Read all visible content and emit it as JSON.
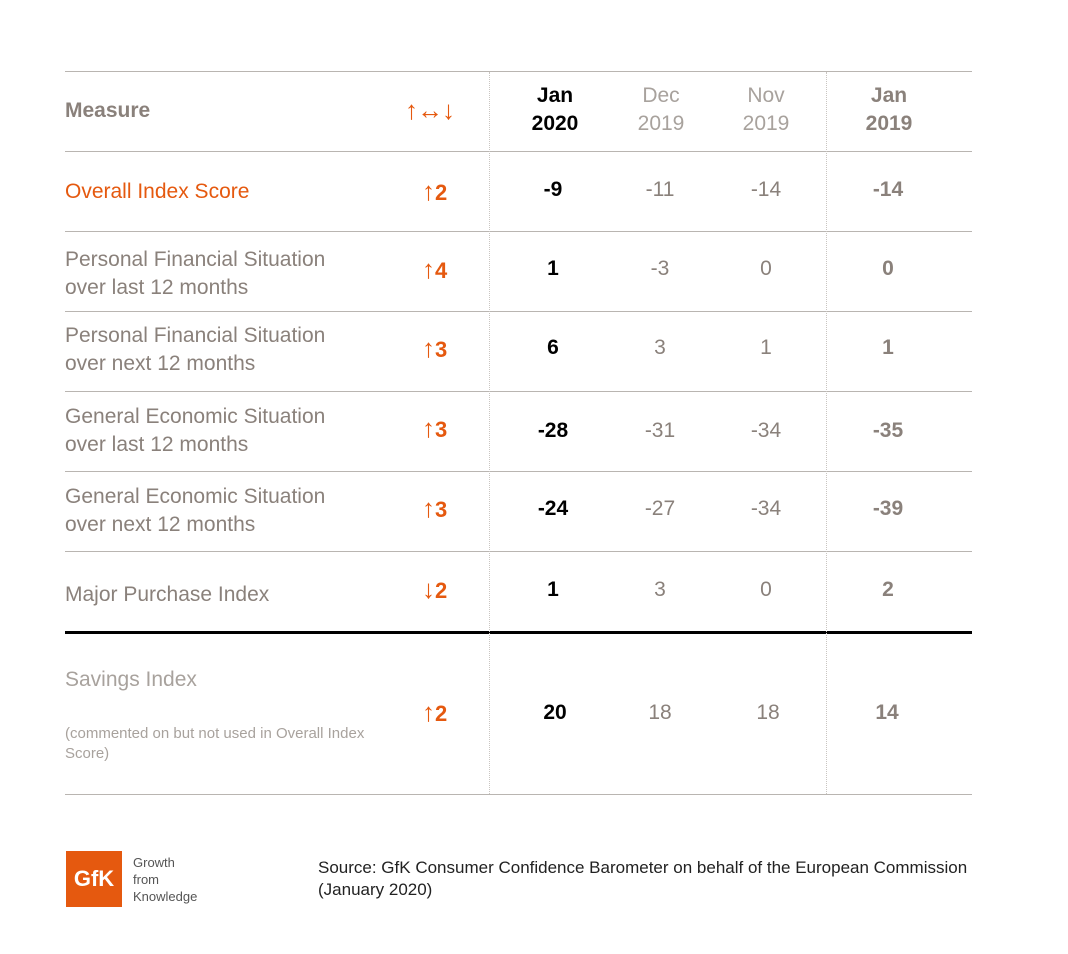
{
  "header": {
    "measure": "Measure",
    "change_symbol": "↑↔↓",
    "columns": [
      {
        "line1": "Jan",
        "line2": "2020"
      },
      {
        "line1": "Dec",
        "line2": "2019"
      },
      {
        "line1": "Nov",
        "line2": "2019"
      },
      {
        "line1": "Jan",
        "line2": "2019"
      }
    ]
  },
  "chart_data": {
    "type": "table",
    "columns": [
      "Measure",
      "↑↔↓",
      "Jan 2020",
      "Dec 2019",
      "Nov 2019",
      "Jan 2019"
    ],
    "rows": [
      {
        "label1": "Overall Index Score",
        "label2": "",
        "direction": "up",
        "arrow": "↑",
        "change": "2",
        "values": [
          "-9",
          "-11",
          "-14",
          "-14"
        ]
      },
      {
        "label1": "Personal Financial Situation",
        "label2": "over last 12 months",
        "direction": "up",
        "arrow": "↑",
        "change": "4",
        "values": [
          "1",
          "-3",
          "0",
          "0"
        ]
      },
      {
        "label1": "Personal Financial Situation",
        "label2": "over next 12 months",
        "direction": "up",
        "arrow": "↑",
        "change": "3",
        "values": [
          "6",
          "3",
          "1",
          "1"
        ]
      },
      {
        "label1": "General Economic Situation",
        "label2": "over last 12 months",
        "direction": "up",
        "arrow": "↑",
        "change": "3",
        "values": [
          "-28",
          "-31",
          "-34",
          "-35"
        ]
      },
      {
        "label1": "General Economic Situation",
        "label2": "over next 12 months",
        "direction": "up",
        "arrow": "↑",
        "change": "3",
        "values": [
          "-24",
          "-27",
          "-34",
          "-39"
        ]
      },
      {
        "label1": "Major Purchase Index",
        "label2": "",
        "direction": "down",
        "arrow": "↓",
        "change": "2",
        "values": [
          "1",
          "3",
          "0",
          "2"
        ]
      },
      {
        "label1": "Savings Index",
        "label2": "",
        "note": "(commented on but not used in Overall Index Score)",
        "direction": "up",
        "arrow": "↑",
        "change": "2",
        "values": [
          "20",
          "18",
          "18",
          "14"
        ]
      }
    ]
  },
  "footer": {
    "logo_text": "GfK",
    "tagline": [
      "Growth",
      "from",
      "Knowledge"
    ],
    "source": "Source: GfK Consumer Confidence Barometer on behalf of the European Commission (January 2020)"
  },
  "colors": {
    "accent": "#e5590f",
    "muted_text": "#8a817b",
    "light_text": "#a8a29d",
    "current": "#000000"
  }
}
